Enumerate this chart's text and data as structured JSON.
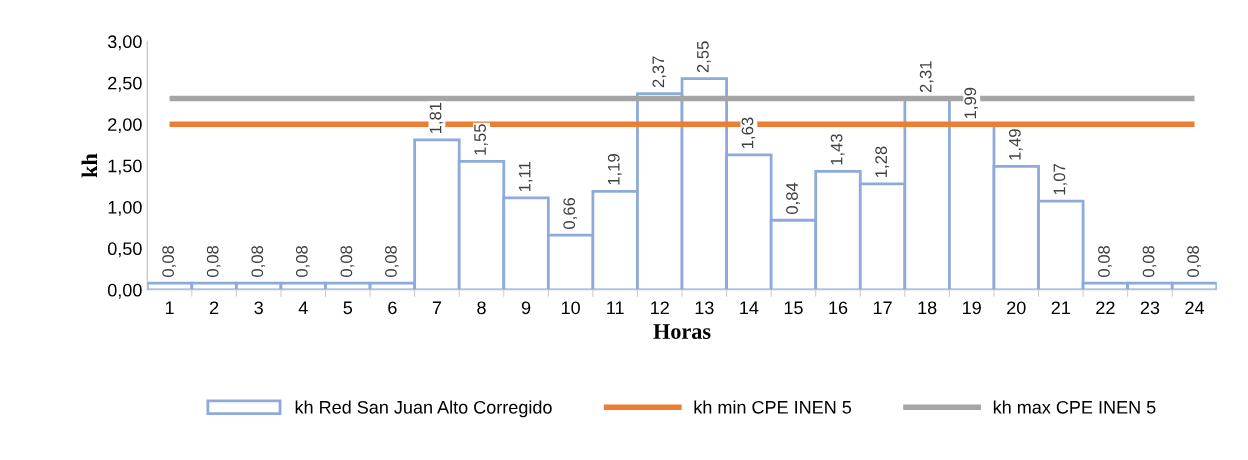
{
  "chart_data": {
    "type": "bar",
    "categories": [
      "1",
      "2",
      "3",
      "4",
      "5",
      "6",
      "7",
      "8",
      "9",
      "10",
      "11",
      "12",
      "13",
      "14",
      "15",
      "16",
      "17",
      "18",
      "19",
      "20",
      "21",
      "22",
      "23",
      "24"
    ],
    "series": [
      {
        "name": "kh Red San Juan Alto Corregido",
        "color": "#8eaadb",
        "values": [
          0.08,
          0.08,
          0.08,
          0.08,
          0.08,
          0.08,
          1.81,
          1.55,
          1.11,
          0.66,
          1.19,
          2.37,
          2.55,
          1.63,
          0.84,
          1.43,
          1.28,
          2.31,
          1.99,
          1.49,
          1.07,
          0.08,
          0.08,
          0.08
        ],
        "value_labels": [
          "0,08",
          "0,08",
          "0,08",
          "0,08",
          "0,08",
          "0,08",
          "1,81",
          "1,55",
          "1,11",
          "0,66",
          "1,19",
          "2,37",
          "2,55",
          "1,63",
          "0,84",
          "1,43",
          "1,28",
          "2,31",
          "1,99",
          "1,49",
          "1,07",
          "0,08",
          "0,08",
          "0,08"
        ]
      }
    ],
    "ref_lines": [
      {
        "axis": "y",
        "value": 2.0,
        "label": "kh min CPE INEN 5",
        "color": "#ed7d31"
      },
      {
        "axis": "y",
        "value": 2.31,
        "label": "kh max CPE INEN 5",
        "color": "#a5a5a5"
      }
    ],
    "xlabel": "Horas",
    "ylabel": "kh",
    "ylim": [
      0,
      3
    ],
    "yticks": [
      {
        "value": 0,
        "label": "0,00"
      },
      {
        "value": 0.5,
        "label": "0,50"
      },
      {
        "value": 1,
        "label": "1,00"
      },
      {
        "value": 1.5,
        "label": "1,50"
      },
      {
        "value": 2,
        "label": "2,00"
      },
      {
        "value": 2.5,
        "label": "2,50"
      },
      {
        "value": 3,
        "label": "3,00"
      }
    ],
    "grid": false,
    "legend": "bottom"
  }
}
